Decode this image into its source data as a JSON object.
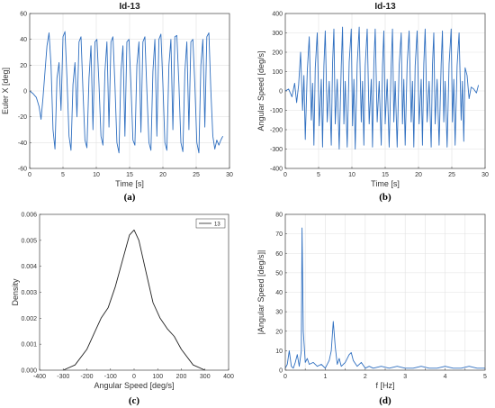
{
  "chart_data": [
    {
      "id": "a",
      "type": "line",
      "panel_label": "(a)",
      "title": "Id-13",
      "xlabel": "Time [s]",
      "ylabel": "Euler X [deg]",
      "xlim": [
        0,
        30
      ],
      "ylim": [
        -60,
        60
      ],
      "xticks": [
        0,
        5,
        10,
        15,
        20,
        25,
        30
      ],
      "yticks": [
        -60,
        -40,
        -20,
        0,
        20,
        40,
        60
      ],
      "grid": true,
      "color": "#2f6fc0",
      "series": [
        {
          "x": [
            0,
            0.5,
            1.0,
            1.4,
            1.7,
            2.0,
            2.3,
            2.6,
            2.9,
            3.2,
            3.5,
            3.8,
            4.1,
            4.4,
            4.7,
            5.0,
            5.3,
            5.6,
            5.9,
            6.2,
            6.5,
            6.8,
            7.1,
            7.4,
            7.7,
            8.0,
            8.3,
            8.6,
            8.9,
            9.2,
            9.5,
            9.8,
            10.1,
            10.4,
            10.7,
            11.0,
            11.3,
            11.6,
            11.9,
            12.2,
            12.5,
            12.8,
            13.1,
            13.4,
            13.7,
            14.0,
            14.3,
            14.6,
            14.9,
            15.2,
            15.5,
            15.8,
            16.1,
            16.4,
            16.7,
            17.0,
            17.3,
            17.6,
            17.9,
            18.2,
            18.5,
            18.8,
            19.1,
            19.4,
            19.7,
            20.0,
            20.3,
            20.6,
            20.9,
            21.2,
            21.5,
            21.8,
            22.1,
            22.4,
            22.7,
            23.0,
            23.3,
            23.6,
            23.9,
            24.2,
            24.5,
            24.8,
            25.1,
            25.4,
            25.7,
            26.0,
            26.3,
            26.6,
            26.9,
            27.2,
            27.5,
            27.8,
            28.1,
            28.4,
            28.7,
            29.0
          ],
          "y": [
            0,
            -2,
            -5,
            -12,
            -22,
            -5,
            15,
            35,
            45,
            20,
            -30,
            -45,
            10,
            22,
            -15,
            42,
            46,
            10,
            -35,
            -46,
            5,
            22,
            -20,
            38,
            42,
            0,
            -38,
            -44,
            10,
            35,
            -30,
            38,
            40,
            5,
            -35,
            -42,
            15,
            38,
            -28,
            38,
            42,
            5,
            -40,
            -48,
            15,
            35,
            -35,
            38,
            40,
            5,
            -38,
            -42,
            20,
            38,
            -32,
            38,
            42,
            0,
            -40,
            -46,
            15,
            40,
            -35,
            40,
            44,
            5,
            -40,
            -46,
            20,
            40,
            -30,
            42,
            43,
            5,
            -40,
            -47,
            15,
            38,
            -30,
            38,
            40,
            5,
            -40,
            -48,
            20,
            40,
            -28,
            42,
            45,
            0,
            -35,
            -45,
            -38,
            -42,
            -38,
            -35
          ]
        }
      ]
    },
    {
      "id": "b",
      "type": "line",
      "panel_label": "(b)",
      "title": "Id-13",
      "xlabel": "Time [s]",
      "ylabel": "Angular Speed [deg/s]",
      "xlim": [
        0,
        30
      ],
      "ylim": [
        -400,
        400
      ],
      "xticks": [
        0,
        5,
        10,
        15,
        20,
        25,
        30
      ],
      "yticks": [
        -400,
        -300,
        -200,
        -100,
        0,
        100,
        200,
        300,
        400
      ],
      "grid": true,
      "color": "#2f6fc0",
      "series": [
        {
          "x": [
            0,
            0.5,
            1.0,
            1.4,
            1.7,
            2.0,
            2.3,
            2.6,
            2.8,
            3.0,
            3.3,
            3.6,
            3.9,
            4.1,
            4.3,
            4.5,
            4.8,
            5.1,
            5.4,
            5.6,
            5.8,
            6.0,
            6.3,
            6.6,
            6.9,
            7.1,
            7.3,
            7.5,
            7.8,
            8.1,
            8.4,
            8.6,
            8.8,
            9.0,
            9.3,
            9.6,
            9.9,
            10.1,
            10.3,
            10.5,
            10.8,
            11.1,
            11.4,
            11.6,
            11.8,
            12.0,
            12.3,
            12.6,
            12.9,
            13.1,
            13.3,
            13.5,
            13.8,
            14.1,
            14.4,
            14.6,
            14.8,
            15.0,
            15.3,
            15.6,
            15.9,
            16.1,
            16.3,
            16.5,
            16.8,
            17.1,
            17.4,
            17.6,
            17.8,
            18.0,
            18.3,
            18.6,
            18.9,
            19.1,
            19.3,
            19.5,
            19.8,
            20.1,
            20.4,
            20.6,
            20.8,
            21.0,
            21.3,
            21.6,
            21.9,
            22.1,
            22.3,
            22.5,
            22.8,
            23.1,
            23.4,
            23.6,
            23.8,
            24.0,
            24.3,
            24.6,
            24.9,
            25.1,
            25.3,
            25.5,
            25.8,
            26.1,
            26.4,
            26.6,
            26.8,
            27.0,
            27.3,
            27.6,
            27.9,
            28.3,
            28.7,
            29.0
          ],
          "y": [
            0,
            10,
            -30,
            40,
            -60,
            30,
            200,
            -100,
            80,
            -250,
            100,
            280,
            -150,
            40,
            -280,
            120,
            300,
            -180,
            60,
            -290,
            130,
            310,
            -160,
            50,
            -280,
            140,
            320,
            -170,
            60,
            -300,
            130,
            330,
            -170,
            50,
            -290,
            150,
            320,
            -180,
            60,
            -300,
            140,
            330,
            -160,
            50,
            -280,
            130,
            320,
            -170,
            60,
            -290,
            140,
            320,
            -160,
            50,
            -280,
            130,
            310,
            -170,
            60,
            -290,
            140,
            320,
            -160,
            50,
            -290,
            130,
            300,
            -170,
            60,
            -280,
            140,
            310,
            -160,
            50,
            -290,
            130,
            310,
            -170,
            60,
            -280,
            140,
            320,
            -160,
            50,
            -290,
            130,
            300,
            -170,
            60,
            -280,
            140,
            310,
            -160,
            50,
            -290,
            140,
            320,
            -160,
            60,
            -280,
            130,
            300,
            -150,
            50,
            -260,
            120,
            80,
            -40,
            20,
            10,
            -10,
            30
          ]
        }
      ]
    },
    {
      "id": "c",
      "type": "line",
      "panel_label": "(c)",
      "title": "",
      "xlabel": "Angular Speed [deg/s]",
      "ylabel": "Density",
      "xlim": [
        -400,
        400
      ],
      "ylim": [
        0,
        0.006
      ],
      "xticks": [
        -400,
        -300,
        -200,
        -100,
        0,
        100,
        200,
        300,
        400
      ],
      "yticks": [
        0,
        0.001,
        0.002,
        0.003,
        0.004,
        0.005,
        0.006
      ],
      "ytick_labels": [
        "0.000",
        "0.001",
        "0.002",
        "0.003",
        "0.004",
        "0.005",
        "0.006"
      ],
      "grid": false,
      "color": "#222222",
      "legend": [
        "13"
      ],
      "legend_position": "top-right",
      "series": [
        {
          "name": "13",
          "x": [
            -300,
            -250,
            -200,
            -170,
            -140,
            -110,
            -80,
            -50,
            -20,
            0,
            20,
            50,
            80,
            110,
            140,
            170,
            200,
            250,
            300
          ],
          "y": [
            0,
            0.0002,
            0.0008,
            0.0014,
            0.002,
            0.0024,
            0.0032,
            0.0042,
            0.0052,
            0.0054,
            0.005,
            0.0038,
            0.0026,
            0.002,
            0.0016,
            0.0013,
            0.0008,
            0.0002,
            0
          ]
        }
      ]
    },
    {
      "id": "d",
      "type": "line",
      "panel_label": "(d)",
      "title": "",
      "xlabel": "f [Hz]",
      "ylabel": "|Angular Speed [deg/s]|",
      "xlim": [
        0,
        5
      ],
      "ylim": [
        0,
        80
      ],
      "xticks": [
        0,
        0.5,
        1,
        1.5,
        2,
        2.5,
        3,
        3.5,
        4,
        4.5,
        5
      ],
      "xtick_labels": [
        "0",
        "",
        "1",
        "",
        "2",
        "",
        "3",
        "",
        "4",
        "",
        "5"
      ],
      "yticks": [
        0,
        10,
        20,
        30,
        40,
        50,
        60,
        70,
        80
      ],
      "grid": true,
      "color": "#2f6fc0",
      "series": [
        {
          "x": [
            0,
            0.05,
            0.1,
            0.15,
            0.2,
            0.25,
            0.3,
            0.35,
            0.4,
            0.42,
            0.45,
            0.5,
            0.55,
            0.6,
            0.7,
            0.8,
            0.9,
            1.0,
            1.1,
            1.15,
            1.2,
            1.25,
            1.3,
            1.35,
            1.4,
            1.5,
            1.6,
            1.65,
            1.7,
            1.8,
            1.9,
            2.0,
            2.1,
            2.2,
            2.4,
            2.6,
            2.8,
            3.0,
            3.2,
            3.4,
            3.6,
            3.8,
            4.0,
            4.2,
            4.4,
            4.6,
            4.8,
            5.0
          ],
          "y": [
            1,
            3,
            10,
            2,
            1,
            4,
            8,
            2,
            10,
            73,
            20,
            4,
            6,
            3,
            4,
            2,
            3,
            1,
            5,
            10,
            25,
            12,
            3,
            6,
            2,
            4,
            8,
            9,
            5,
            2,
            4,
            1,
            2,
            1,
            2,
            1,
            2,
            1,
            1,
            2,
            1,
            1,
            2,
            1,
            1,
            2,
            1,
            1
          ]
        }
      ]
    }
  ]
}
